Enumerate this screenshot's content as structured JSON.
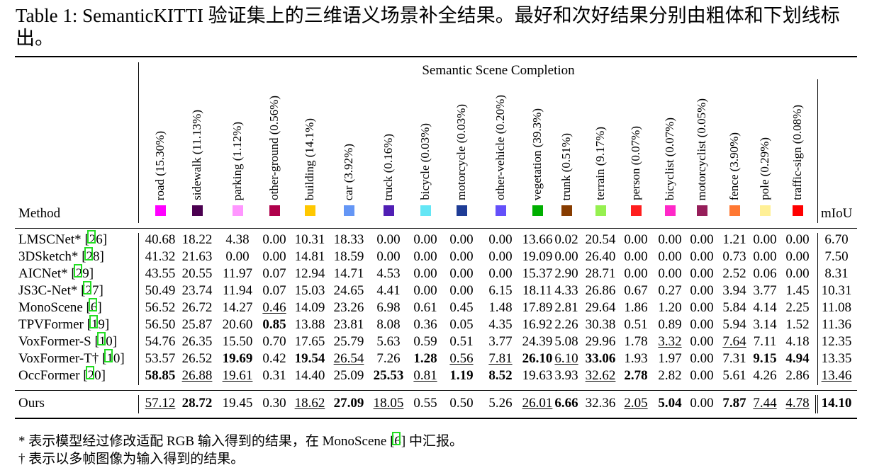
{
  "caption": "Table 1: SemanticKITTI 验证集上的三维语义场景补全结果。最好和次好结果分别由粗体和下划线标出。",
  "group_title": "Semantic Scene Completion",
  "method_header": "Method",
  "miou_header": "mIoU",
  "classes": [
    {
      "label": "road (15.30%)",
      "color": "#ff00ff"
    },
    {
      "label": "sidewalk (11.13%)",
      "color": "#4b0050"
    },
    {
      "label": "parking (1.12%)",
      "color": "#ff96ff"
    },
    {
      "label": "other-ground (0.56%)",
      "color": "#af004b"
    },
    {
      "label": "building (14.1%)",
      "color": "#ffc800"
    },
    {
      "label": "car (3.92%)",
      "color": "#6496f5"
    },
    {
      "label": "truck (0.16%)",
      "color": "#501eb4"
    },
    {
      "label": "bicycle (0.03%)",
      "color": "#64e6f5"
    },
    {
      "label": "motorcycle (0.03%)",
      "color": "#1e3c96"
    },
    {
      "label": "other-vehicle (0.20%)",
      "color": "#6450fa"
    },
    {
      "label": "vegetation (39.3%)",
      "color": "#00af00"
    },
    {
      "label": "trunk (0.51%)",
      "color": "#873c00"
    },
    {
      "label": "terrain (9.17%)",
      "color": "#96f050"
    },
    {
      "label": "person (0.07%)",
      "color": "#ff1e1e"
    },
    {
      "label": "bicyclist (0.07%)",
      "color": "#ff28c8"
    },
    {
      "label": "motorcyclist (0.05%)",
      "color": "#961e5a"
    },
    {
      "label": "fence (3.90%)",
      "color": "#ff7832"
    },
    {
      "label": "pole (0.29%)",
      "color": "#fff096"
    },
    {
      "label": "traffic-sign (0.08%)",
      "color": "#ff0000"
    }
  ],
  "rows": [
    {
      "name": "LMSCNet*",
      "ref": "26",
      "values": [
        "40.68",
        "18.22",
        "4.38",
        "0.00",
        "10.31",
        "18.33",
        "0.00",
        "0.00",
        "0.00",
        "0.00",
        "13.66",
        "0.02",
        "20.54",
        "0.00",
        "0.00",
        "0.00",
        "1.21",
        "0.00",
        "0.00"
      ],
      "miou": "6.70",
      "bold": [],
      "underline": []
    },
    {
      "name": "3DSketch*",
      "ref": "28",
      "values": [
        "41.32",
        "21.63",
        "0.00",
        "0.00",
        "14.81",
        "18.59",
        "0.00",
        "0.00",
        "0.00",
        "0.00",
        "19.09",
        "0.00",
        "26.40",
        "0.00",
        "0.00",
        "0.00",
        "0.73",
        "0.00",
        "0.00"
      ],
      "miou": "7.50",
      "bold": [],
      "underline": []
    },
    {
      "name": "AICNet*",
      "ref": "29",
      "values": [
        "43.55",
        "20.55",
        "11.97",
        "0.07",
        "12.94",
        "14.71",
        "4.53",
        "0.00",
        "0.00",
        "0.00",
        "15.37",
        "2.90",
        "28.71",
        "0.00",
        "0.00",
        "0.00",
        "2.52",
        "0.06",
        "0.00"
      ],
      "miou": "8.31",
      "bold": [],
      "underline": []
    },
    {
      "name": "JS3C-Net*",
      "ref": "27",
      "values": [
        "50.49",
        "23.74",
        "11.94",
        "0.07",
        "15.03",
        "24.65",
        "4.41",
        "0.00",
        "0.00",
        "6.15",
        "18.11",
        "4.33",
        "26.86",
        "0.67",
        "0.27",
        "0.00",
        "3.94",
        "3.77",
        "1.45"
      ],
      "miou": "10.31",
      "bold": [],
      "underline": []
    },
    {
      "name": "MonoScene",
      "ref": "6",
      "values": [
        "56.52",
        "26.72",
        "14.27",
        "0.46",
        "14.09",
        "23.26",
        "6.98",
        "0.61",
        "0.45",
        "1.48",
        "17.89",
        "2.81",
        "29.64",
        "1.86",
        "1.20",
        "0.00",
        "5.84",
        "4.14",
        "2.25"
      ],
      "miou": "11.08",
      "bold": [],
      "underline": [
        3
      ]
    },
    {
      "name": "TPVFormer",
      "ref": "19",
      "values": [
        "56.50",
        "25.87",
        "20.60",
        "0.85",
        "13.88",
        "23.81",
        "8.08",
        "0.36",
        "0.05",
        "4.35",
        "16.92",
        "2.26",
        "30.38",
        "0.51",
        "0.89",
        "0.00",
        "5.94",
        "3.14",
        "1.52"
      ],
      "miou": "11.36",
      "bold": [
        3
      ],
      "underline": []
    },
    {
      "name": "VoxFormer-S",
      "ref": "10",
      "values": [
        "54.76",
        "26.35",
        "15.50",
        "0.70",
        "17.65",
        "25.79",
        "5.63",
        "0.59",
        "0.51",
        "3.77",
        "24.39",
        "5.08",
        "29.96",
        "1.78",
        "3.32",
        "0.00",
        "7.64",
        "7.11",
        "4.18"
      ],
      "miou": "12.35",
      "bold": [],
      "underline": [
        14,
        16
      ]
    },
    {
      "name": "VoxFormer-T†",
      "ref": "10",
      "values": [
        "53.57",
        "26.52",
        "19.69",
        "0.42",
        "19.54",
        "26.54",
        "7.26",
        "1.28",
        "0.56",
        "7.81",
        "26.10",
        "6.10",
        "33.06",
        "1.93",
        "1.97",
        "0.00",
        "7.31",
        "9.15",
        "4.94"
      ],
      "miou": "13.35",
      "bold": [
        2,
        4,
        7,
        10,
        12,
        17,
        18
      ],
      "underline": [
        5,
        8,
        9,
        11
      ]
    },
    {
      "name": "OccFormer",
      "ref": "20",
      "values": [
        "58.85",
        "26.88",
        "19.61",
        "0.31",
        "14.40",
        "25.09",
        "25.53",
        "0.81",
        "1.19",
        "8.52",
        "19.63",
        "3.93",
        "32.62",
        "2.78",
        "2.82",
        "0.00",
        "5.61",
        "4.26",
        "2.86"
      ],
      "miou": "13.46",
      "bold": [
        0,
        6,
        8,
        9,
        13
      ],
      "underline": [
        1,
        2,
        7,
        12
      ],
      "miou_underline": true
    }
  ],
  "ours": {
    "name": "Ours",
    "values": [
      "57.12",
      "28.72",
      "19.45",
      "0.30",
      "18.62",
      "27.09",
      "18.05",
      "0.55",
      "0.50",
      "5.26",
      "26.01",
      "6.66",
      "32.36",
      "2.05",
      "5.04",
      "0.00",
      "7.87",
      "7.44",
      "4.78"
    ],
    "miou": "14.10",
    "bold": [
      1,
      5,
      11,
      14,
      16
    ],
    "underline": [
      0,
      4,
      6,
      10,
      13,
      17,
      18
    ],
    "miou_bold": true
  },
  "notes": {
    "note1_pre": "* 表示模型经过修改适配 RGB 输入得到的结果，在 MonoScene [",
    "note1_ref": "6",
    "note1_post": "] 中汇报。",
    "note2": "† 表示以多帧图像为输入得到的结果。"
  }
}
